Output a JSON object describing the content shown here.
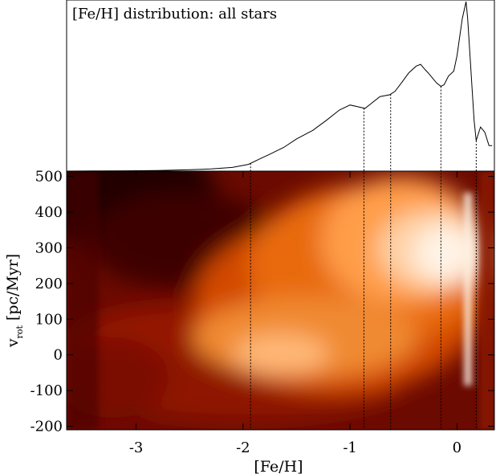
{
  "chart_data": [
    {
      "type": "line",
      "title": "[Fe/H] distribution: all stars",
      "xlabel": "",
      "ylabel": "",
      "xlim": [
        -3.65,
        0.35
      ],
      "ylim": [
        0,
        1.0
      ],
      "x": [
        -3.65,
        -3.4,
        -3.1,
        -2.8,
        -2.5,
        -2.3,
        -2.1,
        -1.95,
        -1.85,
        -1.75,
        -1.62,
        -1.5,
        -1.35,
        -1.22,
        -1.1,
        -1.0,
        -0.93,
        -0.86,
        -0.8,
        -0.72,
        -0.63,
        -0.58,
        -0.52,
        -0.45,
        -0.38,
        -0.34,
        -0.3,
        -0.27,
        -0.23,
        -0.19,
        -0.15,
        -0.12,
        -0.08,
        -0.03,
        0.0,
        0.05,
        0.085,
        0.1,
        0.13,
        0.16,
        0.18,
        0.22,
        0.26,
        0.3,
        0.33
      ],
      "series": [
        {
          "values": [
            0.0,
            0.001,
            0.002,
            0.004,
            0.008,
            0.013,
            0.022,
            0.04,
            0.07,
            0.1,
            0.14,
            0.19,
            0.24,
            0.3,
            0.36,
            0.39,
            0.38,
            0.37,
            0.4,
            0.44,
            0.45,
            0.47,
            0.52,
            0.58,
            0.62,
            0.63,
            0.6,
            0.58,
            0.55,
            0.52,
            0.5,
            0.51,
            0.56,
            0.59,
            0.68,
            0.9,
            1.0,
            0.9,
            0.6,
            0.3,
            0.18,
            0.26,
            0.23,
            0.15,
            0.15
          ]
        }
      ]
    },
    {
      "type": "heatmap",
      "xlabel": "[Fe/H]",
      "ylabel": "v",
      "ylabel_subscript": "rot",
      "ylabel_unit": "[pc/Myr]",
      "xlim": [
        -3.65,
        0.35
      ],
      "ylim": [
        -210,
        515
      ],
      "xticks": [
        -3,
        -2,
        -1,
        0
      ],
      "xtick_labels": [
        "-3",
        "-2",
        "-1",
        "0"
      ],
      "yticks": [
        500,
        400,
        300,
        200,
        100,
        0,
        -100,
        -200
      ],
      "ytick_labels": [
        "500",
        "400",
        "300",
        "200",
        "100",
        "0",
        "-100",
        "-200"
      ],
      "vlines": [
        -1.93,
        -0.87,
        -0.62,
        -0.15,
        0.18
      ],
      "colormap": [
        "#1a0000",
        "#560000",
        "#a51d00",
        "#e85a00",
        "#ff9a3c",
        "#ffd9b0",
        "#ffffff"
      ]
    }
  ]
}
